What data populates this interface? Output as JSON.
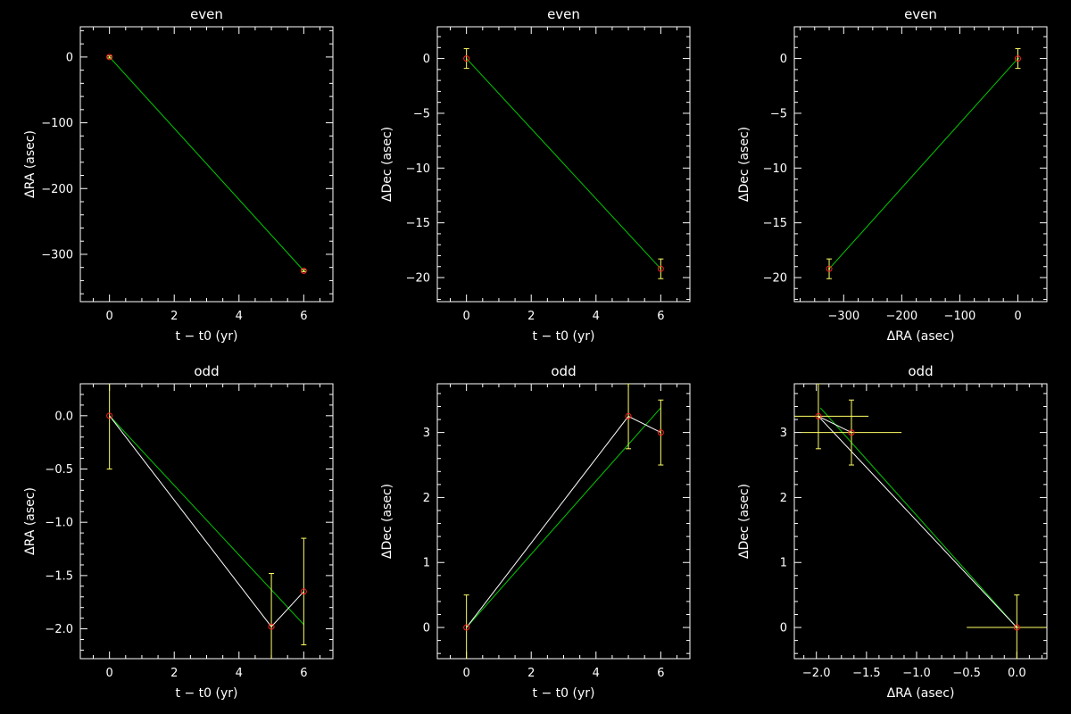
{
  "colors": {
    "background": "#000000",
    "axes": "#ffffff",
    "fit_line": "#00cc00",
    "data_line": "#ffffff",
    "error_bar": "#ffff66",
    "marker": "#ff2020"
  },
  "chart_data": [
    {
      "id": "even-ra-vs-t",
      "type": "scatter",
      "title": "even",
      "xlabel": "t − t0 (yr)",
      "ylabel": "ΔRA (asec)",
      "xlim": [
        -0.9,
        6.9
      ],
      "ylim": [
        -372,
        46
      ],
      "xticks": [
        0,
        2,
        4,
        6
      ],
      "yticks": [
        0,
        -100,
        -200,
        -300
      ],
      "xtick_labels": [
        "0",
        "2",
        "4",
        "6"
      ],
      "ytick_labels": [
        "0",
        "−100",
        "−200",
        "−300"
      ],
      "x": [
        0,
        6
      ],
      "y": [
        0,
        -325
      ],
      "yerr": [
        1.5,
        1.5
      ],
      "connect_points": false,
      "fit": [
        [
          0,
          0
        ],
        [
          6,
          -325
        ]
      ]
    },
    {
      "id": "even-dec-vs-t",
      "type": "scatter",
      "title": "even",
      "xlabel": "t − t0 (yr)",
      "ylabel": "ΔDec (asec)",
      "xlim": [
        -0.9,
        6.9
      ],
      "ylim": [
        -22.2,
        2.9
      ],
      "xticks": [
        0,
        2,
        4,
        6
      ],
      "yticks": [
        0,
        -5,
        -10,
        -15,
        -20
      ],
      "xtick_labels": [
        "0",
        "2",
        "4",
        "6"
      ],
      "ytick_labels": [
        "0",
        "−5",
        "−10",
        "−15",
        "−20"
      ],
      "x": [
        0,
        6
      ],
      "y": [
        0,
        -19.2
      ],
      "yerr": [
        0.9,
        0.9
      ],
      "connect_points": false,
      "fit": [
        [
          0,
          0
        ],
        [
          6,
          -19.2
        ]
      ]
    },
    {
      "id": "even-dec-vs-ra",
      "type": "scatter",
      "title": "even",
      "xlabel": "ΔRA (asec)",
      "ylabel": "ΔDec (asec)",
      "xlim": [
        -385,
        50
      ],
      "ylim": [
        -22.2,
        2.9
      ],
      "xticks": [
        -300,
        -200,
        -100,
        0
      ],
      "yticks": [
        0,
        -5,
        -10,
        -15,
        -20
      ],
      "xtick_labels": [
        "−300",
        "−200",
        "−100",
        "0"
      ],
      "ytick_labels": [
        "0",
        "−5",
        "−10",
        "−15",
        "−20"
      ],
      "x": [
        0,
        -325
      ],
      "y": [
        0,
        -19.2
      ],
      "yerr": [
        0.9,
        0.9
      ],
      "xerr": [
        1.5,
        1.5
      ],
      "connect_points": false,
      "fit": [
        [
          0,
          0
        ],
        [
          -325,
          -19.2
        ]
      ]
    },
    {
      "id": "odd-ra-vs-t",
      "type": "scatter",
      "title": "odd",
      "xlabel": "t − t0 (yr)",
      "ylabel": "ΔRA (asec)",
      "xlim": [
        -0.9,
        6.9
      ],
      "ylim": [
        -2.28,
        0.3
      ],
      "xticks": [
        0,
        2,
        4,
        6
      ],
      "yticks": [
        0.0,
        -0.5,
        -1.0,
        -1.5,
        -2.0
      ],
      "xtick_labels": [
        "0",
        "2",
        "4",
        "6"
      ],
      "ytick_labels": [
        "0.0",
        "−0.5",
        "−1.0",
        "−1.5",
        "−2.0"
      ],
      "x": [
        0,
        5,
        6
      ],
      "y": [
        0,
        -1.98,
        -1.65
      ],
      "yerr": [
        0.5,
        0.5,
        0.5
      ],
      "connect_points": true,
      "fit": [
        [
          0,
          0
        ],
        [
          6,
          -1.96
        ]
      ]
    },
    {
      "id": "odd-dec-vs-t",
      "type": "scatter",
      "title": "odd",
      "xlabel": "t − t0 (yr)",
      "ylabel": "ΔDec (asec)",
      "xlim": [
        -0.9,
        6.9
      ],
      "ylim": [
        -0.48,
        3.75
      ],
      "xticks": [
        0,
        2,
        4,
        6
      ],
      "yticks": [
        0,
        1,
        2,
        3
      ],
      "xtick_labels": [
        "0",
        "2",
        "4",
        "6"
      ],
      "ytick_labels": [
        "0",
        "1",
        "2",
        "3"
      ],
      "x": [
        0,
        5,
        6
      ],
      "y": [
        0,
        3.25,
        3.0
      ],
      "yerr": [
        0.5,
        0.5,
        0.5
      ],
      "connect_points": true,
      "fit": [
        [
          0,
          0
        ],
        [
          6,
          3.38
        ]
      ]
    },
    {
      "id": "odd-dec-vs-ra",
      "type": "scatter",
      "title": "odd",
      "xlabel": "ΔRA (asec)",
      "ylabel": "ΔDec (asec)",
      "xlim": [
        -2.22,
        0.3
      ],
      "ylim": [
        -0.48,
        3.75
      ],
      "xticks": [
        -2.0,
        -1.5,
        -1.0,
        -0.5,
        0.0
      ],
      "yticks": [
        0,
        1,
        2,
        3
      ],
      "xtick_labels": [
        "−2.0",
        "−1.5",
        "−1.0",
        "−0.5",
        "0.0"
      ],
      "ytick_labels": [
        "0",
        "1",
        "2",
        "3"
      ],
      "x": [
        0,
        -1.98,
        -1.65
      ],
      "y": [
        0,
        3.25,
        3.0
      ],
      "xerr": [
        0.5,
        0.5,
        0.5
      ],
      "yerr": [
        0.5,
        0.5,
        0.5
      ],
      "connect_points": true,
      "fit": [
        [
          0,
          0
        ],
        [
          -1.96,
          3.38
        ]
      ]
    }
  ]
}
